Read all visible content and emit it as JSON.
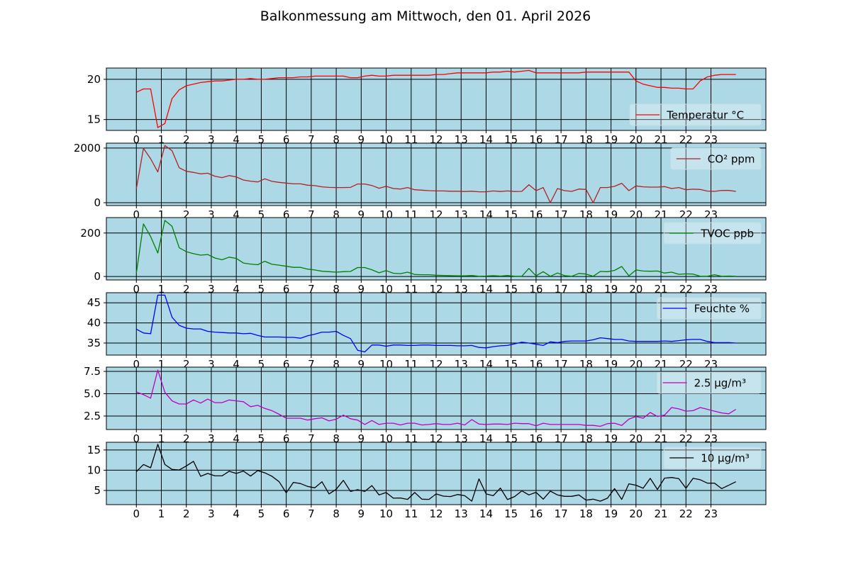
{
  "chart_data": {
    "type": "line",
    "title": "Balkonmessung am Mittwoch, den 01. April 2026",
    "x_step_hours": 0.2857,
    "xlim": [
      -1.2,
      25.2
    ],
    "x_ticks": [
      "0",
      "1",
      "2",
      "3",
      "4",
      "5",
      "6",
      "7",
      "8",
      "9",
      "10",
      "11",
      "12",
      "13",
      "14",
      "15",
      "16",
      "17",
      "18",
      "19",
      "20",
      "21",
      "22",
      "23"
    ],
    "grid": true,
    "background": "#add8e6",
    "panels": [
      {
        "name": "Temperatur °C",
        "color": "#ff0000",
        "legend": "lower-right",
        "ylim": [
          13.65,
          21.4
        ],
        "y_ticks": [
          15,
          20
        ],
        "y_tick_labels": [
          "15",
          "20"
        ],
        "values": [
          18.4,
          18.8,
          18.8,
          14.0,
          14.5,
          17.6,
          18.7,
          19.2,
          19.4,
          19.6,
          19.7,
          19.8,
          19.8,
          19.9,
          20.0,
          20.0,
          20.1,
          20.0,
          20.0,
          20.1,
          20.2,
          20.2,
          20.2,
          20.3,
          20.3,
          20.4,
          20.4,
          20.4,
          20.4,
          20.4,
          20.2,
          20.2,
          20.4,
          20.5,
          20.4,
          20.4,
          20.5,
          20.5,
          20.5,
          20.5,
          20.5,
          20.5,
          20.6,
          20.6,
          20.7,
          20.8,
          20.8,
          20.8,
          20.8,
          20.8,
          20.9,
          20.9,
          21.0,
          20.9,
          21.0,
          21.1,
          20.8,
          20.8,
          20.8,
          20.8,
          20.8,
          20.8,
          20.8,
          20.9,
          20.9,
          20.9,
          20.9,
          20.9,
          20.9,
          20.9,
          19.8,
          19.4,
          19.2,
          19.0,
          19.0,
          18.9,
          18.9,
          18.8,
          18.8,
          19.8,
          20.3,
          20.5,
          20.6,
          20.6,
          20.6
        ]
      },
      {
        "name": "CO² ppm",
        "color": "#b22222",
        "legend": "upper-right",
        "ylim": [
          -104,
          2180
        ],
        "y_ticks": [
          0,
          2000
        ],
        "y_tick_labels": [
          "0",
          "2000"
        ],
        "values": [
          520,
          1990,
          1610,
          1125,
          2095,
          1905,
          1280,
          1150,
          1110,
          1055,
          1080,
          970,
          918,
          995,
          945,
          830,
          790,
          760,
          875,
          780,
          745,
          720,
          690,
          690,
          640,
          625,
          580,
          560,
          555,
          555,
          560,
          685,
          685,
          630,
          530,
          600,
          520,
          500,
          555,
          475,
          460,
          440,
          430,
          430,
          420,
          420,
          410,
          420,
          400,
          400,
          430,
          410,
          430,
          410,
          415,
          660,
          440,
          555,
          0,
          520,
          440,
          415,
          500,
          485,
          0,
          555,
          555,
          600,
          710,
          440,
          615,
          580,
          570,
          570,
          590,
          520,
          555,
          475,
          495,
          485,
          425,
          415,
          450,
          450,
          415
        ]
      },
      {
        "name": "TVOC ppb",
        "color": "#008000",
        "legend": "upper-right",
        "ylim": [
          -16,
          271
        ],
        "y_ticks": [
          0,
          200
        ],
        "y_tick_labels": [
          "0",
          "200"
        ],
        "values": [
          16,
          242,
          184,
          108,
          258,
          231,
          132,
          114,
          105,
          98,
          101,
          85,
          77,
          89,
          83,
          62,
          57,
          54,
          70,
          56,
          52,
          47,
          42,
          42,
          34,
          30,
          24,
          22,
          20,
          22,
          23,
          41,
          41,
          31,
          17,
          27,
          15,
          13,
          20,
          9,
          8,
          8,
          6,
          5,
          4,
          3,
          3,
          5,
          1,
          2,
          4,
          2,
          5,
          1,
          1,
          37,
          3,
          22,
          1,
          16,
          4,
          1,
          14,
          11,
          1,
          23,
          22,
          28,
          46,
          3,
          30,
          25,
          24,
          25,
          16,
          20,
          10,
          12,
          11,
          1,
          1,
          8,
          1,
          2,
          1
        ]
      },
      {
        "name": "Feuchte %",
        "color": "#0000ff",
        "legend": "upper-right",
        "ylim": [
          32.0,
          47.5
        ],
        "y_ticks": [
          35,
          40,
          45
        ],
        "y_tick_labels": [
          "35",
          "40",
          "45"
        ],
        "values": [
          38.45,
          37.5,
          37.3,
          46.9,
          46.9,
          41.4,
          39.4,
          38.7,
          38.5,
          38.5,
          37.9,
          37.7,
          37.6,
          37.5,
          37.5,
          37.3,
          37.4,
          36.9,
          36.5,
          36.5,
          36.5,
          36.4,
          36.4,
          36.2,
          36.8,
          37.2,
          37.7,
          37.7,
          37.9,
          36.9,
          36.1,
          33.2,
          32.8,
          34.5,
          34.5,
          34.2,
          34.5,
          34.5,
          34.4,
          34.4,
          34.5,
          34.5,
          34.4,
          34.4,
          34.4,
          34.3,
          34.3,
          34.4,
          33.9,
          33.8,
          34.1,
          34.3,
          34.4,
          34.8,
          35.2,
          35.0,
          34.7,
          34.4,
          35.3,
          35.1,
          35.4,
          35.5,
          35.5,
          35.5,
          35.8,
          36.3,
          36.1,
          35.9,
          35.9,
          35.5,
          35.4,
          35.4,
          35.4,
          35.4,
          35.5,
          35.4,
          35.6,
          35.8,
          35.9,
          35.9,
          35.4,
          35.1,
          35.1,
          35.1,
          35.0
        ]
      },
      {
        "name": "2.5 µg/m³",
        "color": "#c000c0",
        "legend": "upper-right",
        "ylim": [
          0.99,
          7.98
        ],
        "y_ticks": [
          2.5,
          5.0,
          7.5
        ],
        "y_tick_labels": [
          "2.5",
          "5.0",
          "7.5"
        ],
        "values": [
          5.2,
          4.9,
          4.5,
          7.65,
          5.15,
          4.2,
          3.85,
          3.85,
          4.3,
          3.95,
          4.4,
          4.0,
          4.0,
          4.3,
          4.2,
          4.1,
          3.55,
          3.7,
          3.35,
          3.1,
          2.7,
          2.25,
          2.25,
          2.25,
          2.05,
          2.2,
          2.3,
          1.95,
          2.15,
          2.6,
          2.2,
          2.05,
          1.55,
          2.0,
          1.55,
          1.7,
          1.7,
          1.5,
          1.7,
          1.7,
          1.5,
          1.55,
          1.65,
          1.55,
          1.55,
          1.7,
          1.5,
          2.1,
          1.6,
          1.55,
          1.6,
          1.6,
          1.55,
          1.7,
          1.65,
          1.65,
          1.4,
          1.7,
          1.55,
          1.55,
          1.55,
          1.55,
          1.55,
          1.45,
          1.45,
          1.35,
          1.65,
          1.7,
          1.45,
          2.15,
          2.45,
          2.25,
          2.9,
          2.45,
          2.6,
          3.45,
          3.3,
          3.05,
          3.1,
          3.45,
          3.25,
          3.05,
          2.85,
          2.75,
          3.25
        ]
      },
      {
        "name": "10 µg/m³",
        "color": "#000000",
        "legend": "upper-right",
        "ylim": [
          1.5,
          16.9
        ],
        "y_ticks": [
          5,
          10,
          15
        ],
        "y_tick_labels": [
          "5",
          "10",
          "15"
        ],
        "values": [
          9.65,
          11.4,
          10.6,
          16.4,
          11.4,
          10.2,
          10.05,
          11.05,
          12.2,
          8.5,
          9.2,
          8.6,
          8.6,
          9.75,
          9.2,
          9.8,
          8.55,
          9.9,
          9.35,
          8.5,
          7.15,
          4.4,
          7.0,
          6.7,
          6.0,
          5.65,
          7.15,
          4.15,
          5.3,
          7.5,
          4.75,
          5.2,
          4.75,
          6.2,
          3.9,
          4.5,
          3.1,
          3.15,
          2.8,
          4.5,
          2.85,
          2.8,
          4.15,
          3.6,
          3.5,
          4.0,
          3.7,
          2.35,
          7.85,
          4.15,
          3.7,
          5.6,
          2.75,
          3.5,
          4.9,
          3.9,
          4.55,
          2.85,
          4.85,
          3.9,
          3.55,
          3.55,
          3.9,
          2.6,
          2.85,
          2.35,
          3.1,
          5.45,
          2.8,
          6.65,
          6.3,
          5.55,
          8.0,
          5.25,
          8.05,
          8.2,
          7.9,
          5.55,
          8.0,
          7.65,
          6.8,
          6.8,
          5.45,
          6.3,
          7.15
        ]
      }
    ]
  }
}
